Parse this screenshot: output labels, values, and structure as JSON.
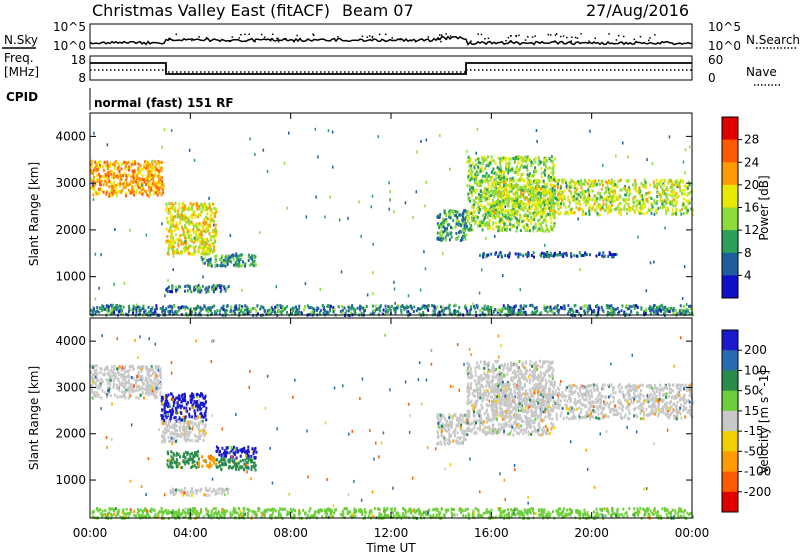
{
  "header": {
    "title": "Christmas Valley East (fitACF)",
    "beam": "Beam 07",
    "date": "27/Aug/2016"
  },
  "top_panels": {
    "nsky_label": "N.Sky",
    "nsearch_label": "N.Search",
    "freq_label_1": "Freq.",
    "freq_label_2": "[MHz]",
    "nave_label": "Nave",
    "cpid_label": "CPID",
    "cpid_text": "normal (fast) 151 RF",
    "noise_left_ticks": [
      "10^5",
      "10^0"
    ],
    "noise_right_ticks": [
      "10^5",
      "10^0"
    ],
    "freq_left_ticks": [
      "18",
      "8"
    ],
    "freq_right_ticks": [
      "60",
      "0"
    ]
  },
  "chart_data": [
    {
      "type": "heatmap",
      "panel": "power",
      "ylabel": "Slant Range [km]",
      "xlabel": "",
      "colorbar_label": "Power [dB]",
      "colorbar_ticks": [
        "28",
        "24",
        "20",
        "16",
        "12",
        "8",
        "4"
      ],
      "colorbar_colors": [
        "#e00000",
        "#ff5a00",
        "#ff9a00",
        "#e8e800",
        "#8edc3a",
        "#2aa05a",
        "#1f5fa0",
        "#1010c8"
      ],
      "ylim": [
        180,
        4500
      ],
      "yticks": [
        1000,
        2000,
        3000,
        4000
      ],
      "xlim": [
        0,
        24
      ],
      "regions": [
        {
          "t0": 0.0,
          "t1": 2.9,
          "r0": 2750,
          "r1": 3500,
          "level": 22
        },
        {
          "t0": 3.0,
          "t1": 5.0,
          "r0": 1500,
          "r1": 2600,
          "level": 18
        },
        {
          "t0": 4.4,
          "t1": 6.6,
          "r0": 1250,
          "r1": 1500,
          "level": 10
        },
        {
          "t0": 3.0,
          "t1": 5.5,
          "r0": 700,
          "r1": 850,
          "level": 8
        },
        {
          "t0": 0.0,
          "t1": 24.0,
          "r0": 200,
          "r1": 420,
          "level": 8
        },
        {
          "t0": 13.8,
          "t1": 15.0,
          "r0": 1800,
          "r1": 2450,
          "level": 10
        },
        {
          "t0": 15.0,
          "t1": 18.5,
          "r0": 2000,
          "r1": 3600,
          "level": 14
        },
        {
          "t0": 16.0,
          "t1": 24.0,
          "r0": 2350,
          "r1": 3100,
          "level": 16
        },
        {
          "t0": 15.5,
          "t1": 21.0,
          "r0": 1450,
          "r1": 1550,
          "level": 6
        }
      ]
    },
    {
      "type": "heatmap",
      "panel": "velocity",
      "ylabel": "Slant Range [km]",
      "xlabel": "Time UT",
      "colorbar_label": "Velocity [m s^-1]",
      "colorbar_ticks": [
        "200",
        "100",
        "50",
        "15",
        "-15",
        "-50",
        "-100",
        "-200"
      ],
      "colorbar_colors": [
        "#1a1acc",
        "#2a6ab0",
        "#2a8c4a",
        "#6ccf3a",
        "#c8c8c8",
        "#f0d000",
        "#ff9a00",
        "#ff5a00",
        "#e00000"
      ],
      "ylim": [
        180,
        4500
      ],
      "yticks": [
        1000,
        2000,
        3000,
        4000
      ],
      "xlim": [
        0,
        24
      ],
      "xticks": [
        "00:00",
        "04:00",
        "08:00",
        "12:00",
        "16:00",
        "20:00",
        "00:00"
      ],
      "regions": [
        {
          "t0": 0.0,
          "t1": 2.8,
          "r0": 2800,
          "r1": 3500,
          "velocity": 0
        },
        {
          "t0": 2.8,
          "t1": 4.6,
          "r0": 2300,
          "r1": 2900,
          "velocity": 200
        },
        {
          "t0": 2.8,
          "t1": 4.6,
          "r0": 1850,
          "r1": 2300,
          "velocity": 0
        },
        {
          "t0": 3.0,
          "t1": 4.3,
          "r0": 1300,
          "r1": 1650,
          "velocity": 40
        },
        {
          "t0": 4.3,
          "t1": 5.0,
          "r0": 1300,
          "r1": 1550,
          "velocity": -60
        },
        {
          "t0": 5.0,
          "t1": 6.6,
          "r0": 1500,
          "r1": 1750,
          "velocity": 200
        },
        {
          "t0": 5.0,
          "t1": 6.6,
          "r0": 1250,
          "r1": 1500,
          "velocity": 40
        },
        {
          "t0": 3.0,
          "t1": 5.5,
          "r0": 700,
          "r1": 850,
          "velocity": 0
        },
        {
          "t0": 0.0,
          "t1": 24.0,
          "r0": 200,
          "r1": 420,
          "velocity": 30
        },
        {
          "t0": 13.8,
          "t1": 15.0,
          "r0": 1800,
          "r1": 2450,
          "velocity": 0
        },
        {
          "t0": 15.0,
          "t1": 18.5,
          "r0": 2000,
          "r1": 3600,
          "velocity": 0
        },
        {
          "t0": 16.0,
          "t1": 24.0,
          "r0": 2350,
          "r1": 3100,
          "velocity": 0
        }
      ]
    }
  ]
}
